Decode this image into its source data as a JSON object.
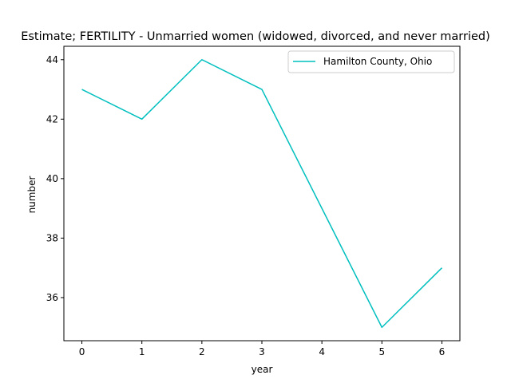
{
  "chart_data": {
    "type": "line",
    "title": "Estimate; FERTILITY - Unmarried women (widowed, divorced, and never married)",
    "xlabel": "year",
    "ylabel": "number",
    "x": [
      0,
      1,
      2,
      3,
      4,
      5,
      6
    ],
    "xlim": [
      -0.3,
      6.3
    ],
    "ylim": [
      34.55,
      44.45
    ],
    "xticks": [
      0,
      1,
      2,
      3,
      4,
      5,
      6
    ],
    "yticks": [
      36,
      38,
      40,
      42,
      44
    ],
    "grid": false,
    "legend_position": "top-right",
    "series": [
      {
        "name": "Hamilton County, Ohio",
        "color": "#00bfbf",
        "values": [
          43,
          42,
          44,
          43,
          39,
          35,
          37
        ]
      }
    ]
  }
}
